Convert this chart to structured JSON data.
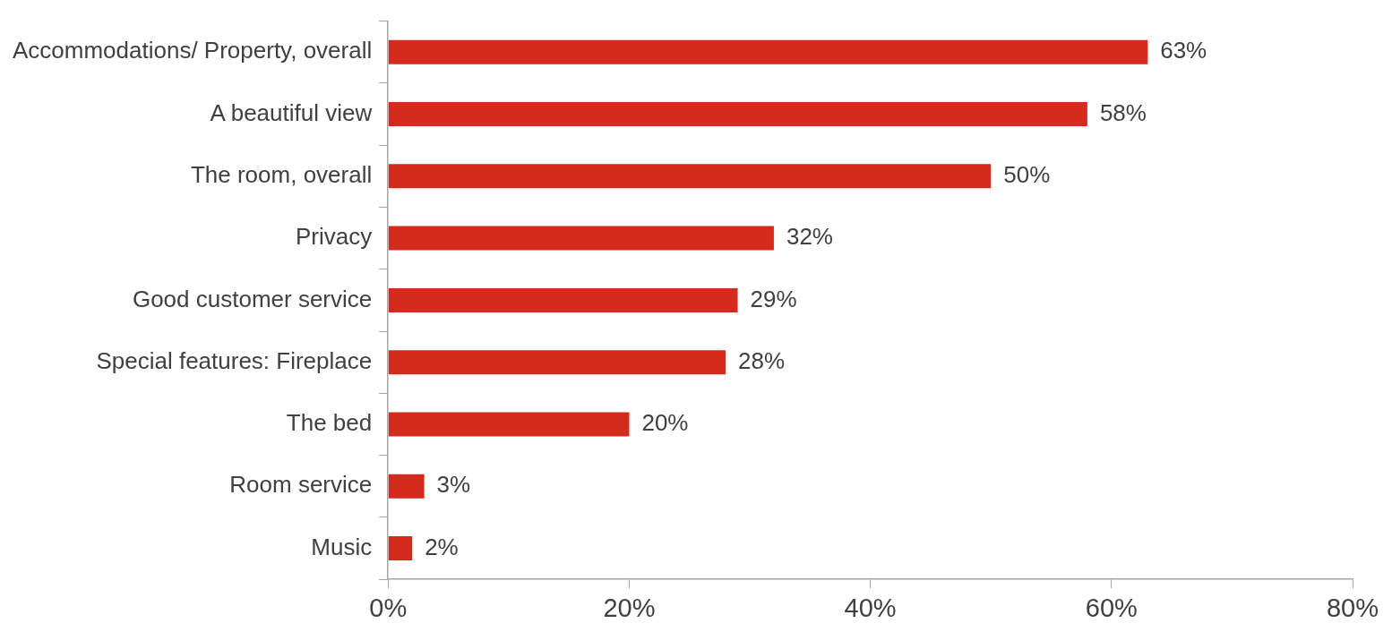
{
  "chart_data": {
    "type": "bar",
    "orientation": "horizontal",
    "categories": [
      "Accommodations/ Property, overall",
      "A beautiful view",
      "The room, overall",
      "Privacy",
      "Good customer service",
      "Special features: Fireplace",
      "The bed",
      "Room service",
      "Music"
    ],
    "values": [
      63,
      58,
      50,
      32,
      29,
      28,
      20,
      3,
      2
    ],
    "value_labels": [
      "63%",
      "58%",
      "50%",
      "32%",
      "29%",
      "28%",
      "20%",
      "3%",
      "2%"
    ],
    "color": "#d52b1e",
    "xlim": [
      0,
      80
    ],
    "xticks": [
      {
        "value": 0,
        "label": "0%"
      },
      {
        "value": 20,
        "label": "20%"
      },
      {
        "value": 40,
        "label": "40%"
      },
      {
        "value": 60,
        "label": "60%"
      },
      {
        "value": 80,
        "label": "80%"
      }
    ],
    "grid": false,
    "legend": false
  }
}
